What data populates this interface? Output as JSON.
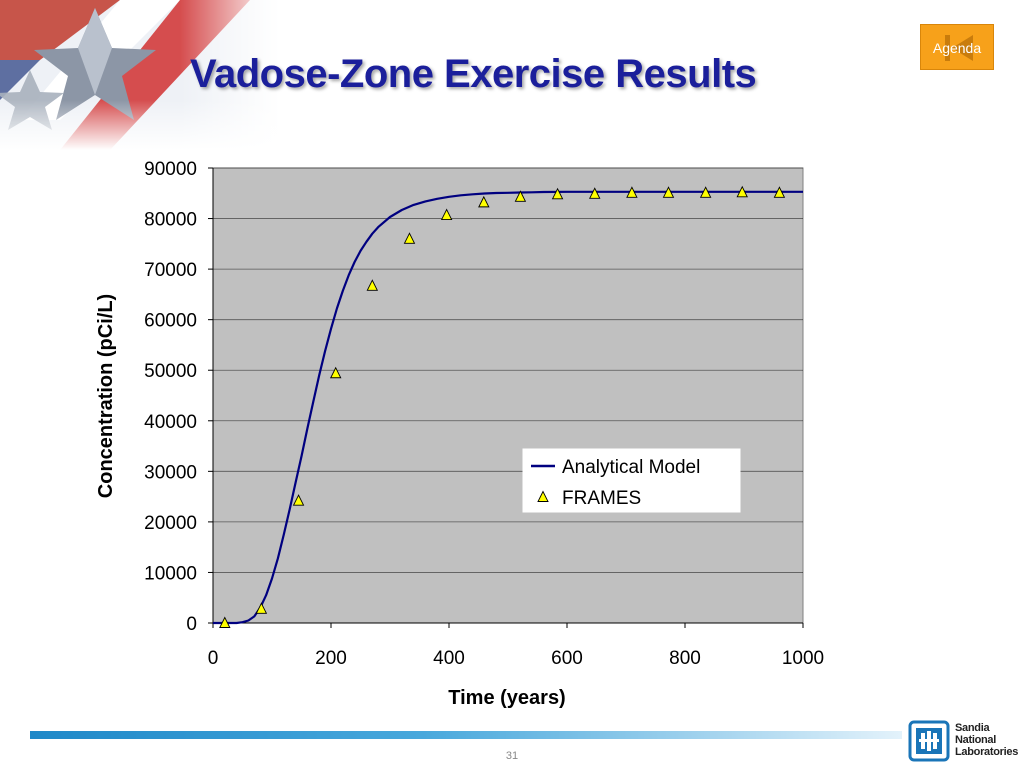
{
  "slide": {
    "title": "Vadose-Zone Exercise Results",
    "page_number": "31",
    "agenda_button_label": "Agenda",
    "logo_lines": [
      "Sandia",
      "National",
      "Laboratories"
    ]
  },
  "colors": {
    "title": "#1b1f9b",
    "plot_background": "#c0c0c0",
    "analytical_line": "#000080",
    "frames_marker": "#ffff00",
    "agenda_button": "#f7a11a",
    "footer_bar": "#1e88c8"
  },
  "chart_data": {
    "type": "scatter",
    "title": "",
    "xlabel": "Time (years)",
    "ylabel": "Concentration (pCi/L)",
    "xlim": [
      0,
      1000
    ],
    "ylim": [
      0,
      90000
    ],
    "x_ticks": [
      "0",
      "200",
      "400",
      "600",
      "800",
      "1000"
    ],
    "y_ticks": [
      "0",
      "10000",
      "20000",
      "30000",
      "40000",
      "50000",
      "60000",
      "70000",
      "80000",
      "90000"
    ],
    "grid": "horizontal",
    "legend_position": "center-right",
    "series": [
      {
        "name": "Analytical Model",
        "kind": "line",
        "x": [
          0,
          40,
          50,
          60,
          70,
          80,
          90,
          100,
          110,
          120,
          130,
          140,
          150,
          160,
          170,
          180,
          190,
          200,
          210,
          220,
          230,
          240,
          250,
          260,
          270,
          280,
          300,
          320,
          340,
          360,
          380,
          400,
          420,
          440,
          460,
          480,
          500,
          520,
          540,
          560,
          600,
          650,
          700,
          800,
          900,
          1000
        ],
        "y": [
          0,
          0,
          150,
          500,
          1300,
          3000,
          5500,
          8800,
          12800,
          17500,
          22500,
          27800,
          33000,
          38500,
          43800,
          49000,
          53800,
          58200,
          62200,
          65700,
          68800,
          71400,
          73600,
          75400,
          77000,
          78300,
          80300,
          81700,
          82700,
          83400,
          83900,
          84300,
          84600,
          84800,
          84950,
          85050,
          85100,
          85150,
          85200,
          85250,
          85300,
          85300,
          85300,
          85300,
          85300,
          85300
        ]
      },
      {
        "name": "FRAMES",
        "kind": "markers",
        "marker": "triangle",
        "x": [
          20,
          82,
          145,
          208,
          270,
          333,
          396,
          459,
          521,
          584,
          647,
          710,
          772,
          835,
          897,
          960
        ],
        "y": [
          0,
          2800,
          24200,
          49400,
          66700,
          76000,
          80700,
          83200,
          84300,
          84800,
          84900,
          85100,
          85100,
          85100,
          85200,
          85100
        ]
      }
    ]
  }
}
